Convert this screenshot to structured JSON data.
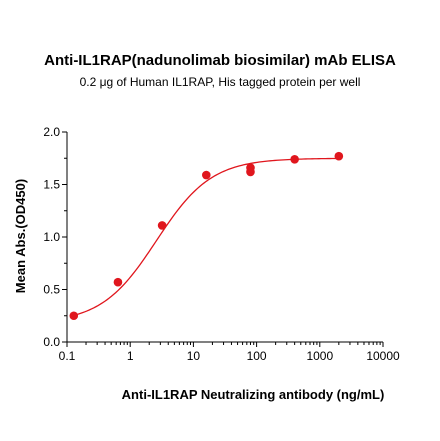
{
  "chart_data": {
    "type": "scatter",
    "title": "Anti-IL1RAP(nadunolimab biosimilar) mAb ELISA",
    "subtitle": "0.2 μg of Human IL1RAP, His tagged protein per well",
    "xlabel": "Anti-IL1RAP Neutralizing antibody (ng/mL)",
    "ylabel": "Mean Abs.(OD450)",
    "x_scale": "log",
    "xlim": [
      0.1,
      10000
    ],
    "ylim": [
      0.0,
      2.0
    ],
    "x_ticks": [
      0.1,
      1,
      10,
      100,
      1000,
      10000
    ],
    "x_tick_labels": [
      "0.1",
      "1",
      "10",
      "100",
      "1000",
      "10000"
    ],
    "y_ticks": [
      0.0,
      0.5,
      1.0,
      1.5,
      2.0
    ],
    "y_tick_labels": [
      "0.0",
      "0.5",
      "1.0",
      "1.5",
      "2.0"
    ],
    "grid": false,
    "color": "#e0161d",
    "series": [
      {
        "x": [
          0.128,
          0.64,
          3.2,
          16,
          80,
          80,
          400,
          2000
        ],
        "y": [
          0.25,
          0.57,
          1.11,
          1.59,
          1.66,
          1.62,
          1.74,
          1.77
        ]
      }
    ],
    "fit_curve": {
      "bottom": 0.18,
      "top": 1.75,
      "ec50": 2.6,
      "hill": 1.0
    }
  }
}
